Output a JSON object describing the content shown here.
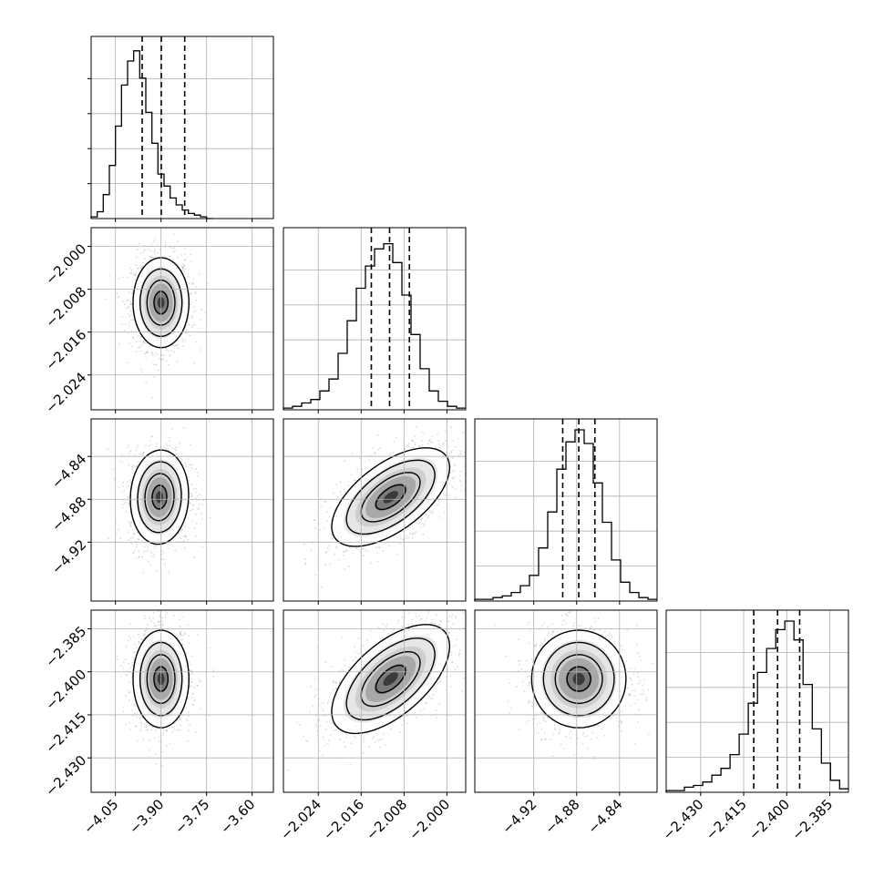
{
  "chart_data": {
    "type": "corner",
    "parameters": [
      {
        "ticks": [
          "−4.05",
          "−3.90",
          "−3.75",
          "−3.60"
        ],
        "tick_values": [
          -4.05,
          -3.9,
          -3.75,
          -3.6
        ],
        "range": [
          -4.13,
          -3.53
        ],
        "quantiles": [
          -3.962,
          -3.899,
          -3.822
        ],
        "hist_edges_start": -4.13,
        "hist_bin": 0.02,
        "hist_counts": [
          1,
          4,
          14,
          31,
          54,
          78,
          92,
          98,
          82,
          62,
          44,
          26,
          19,
          12,
          8,
          5,
          3,
          2,
          1,
          0
        ]
      },
      {
        "ticks": [
          "−2.024",
          "−2.016",
          "−2.008",
          "−2.000"
        ],
        "tick_values": [
          -2.024,
          -2.016,
          -2.008,
          -2.0
        ],
        "range": [
          -2.0305,
          -1.9965
        ],
        "quantiles": [
          -2.0141,
          -2.0107,
          -2.007
        ],
        "hist_edges_start": -2.0305,
        "hist_bin": 0.0017,
        "hist_counts": [
          1,
          2,
          4,
          6,
          11,
          18,
          33,
          52,
          71,
          84,
          94,
          97,
          86,
          67,
          44,
          24,
          11,
          5,
          2,
          1
        ]
      },
      {
        "ticks": [
          "−4.92",
          "−4.88",
          "−4.84"
        ],
        "tick_values": [
          -4.92,
          -4.88,
          -4.84
        ],
        "range": [
          -4.975,
          -4.805
        ],
        "quantiles": [
          -4.893,
          -4.878,
          -4.863
        ],
        "hist_edges_start": -4.975,
        "hist_bin": 0.0085,
        "hist_counts": [
          1,
          1,
          2,
          3,
          5,
          9,
          15,
          31,
          52,
          77,
          93,
          100,
          92,
          69,
          46,
          24,
          11,
          5,
          2,
          1
        ]
      },
      {
        "ticks": [
          "−2.430",
          "−2.415",
          "−2.400",
          "−2.385"
        ],
        "tick_values": [
          -2.43,
          -2.415,
          -2.4,
          -2.385
        ],
        "range": [
          -2.442,
          -2.3785
        ],
        "quantiles": [
          -2.4115,
          -2.4032,
          -2.3955
        ],
        "hist_edges_start": -2.442,
        "hist_bin": 0.00318,
        "hist_counts": [
          1,
          1,
          3,
          4,
          6,
          10,
          14,
          22,
          34,
          52,
          70,
          84,
          95,
          100,
          89,
          63,
          37,
          17,
          7,
          2
        ]
      }
    ],
    "hist_ticks": [
      20,
      40,
      60,
      80
    ],
    "hist_max": 100,
    "pairs": [
      {
        "row": 1,
        "col": 0,
        "center": [
          -3.9,
          -2.0105
        ],
        "sigma": [
          0.046,
          0.0042
        ],
        "rho": 0.0
      },
      {
        "row": 2,
        "col": 0,
        "center": [
          -3.905,
          -4.878
        ],
        "sigma": [
          0.048,
          0.022
        ],
        "rho": 0.05
      },
      {
        "row": 2,
        "col": 1,
        "center": [
          -2.0105,
          -4.878
        ],
        "sigma": [
          0.0055,
          0.023
        ],
        "rho": 0.6
      },
      {
        "row": 3,
        "col": 0,
        "center": [
          -3.9,
          -2.4025
        ],
        "sigma": [
          0.046,
          0.0085
        ],
        "rho": 0.0
      },
      {
        "row": 3,
        "col": 1,
        "center": [
          -2.0105,
          -2.4025
        ],
        "sigma": [
          0.0055,
          0.0095
        ],
        "rho": 0.6
      },
      {
        "row": 3,
        "col": 2,
        "center": [
          -4.878,
          -2.4025
        ],
        "sigma": [
          0.022,
          0.0085
        ],
        "rho": 0.0
      }
    ],
    "contour_levels": [
      0.5,
      1.0,
      1.5,
      2.0
    ],
    "grid": true,
    "style": {
      "line": "#000000",
      "grid": "#b0b0b0",
      "point": "#9a9a9a",
      "fill": "#3a3a3a"
    }
  }
}
